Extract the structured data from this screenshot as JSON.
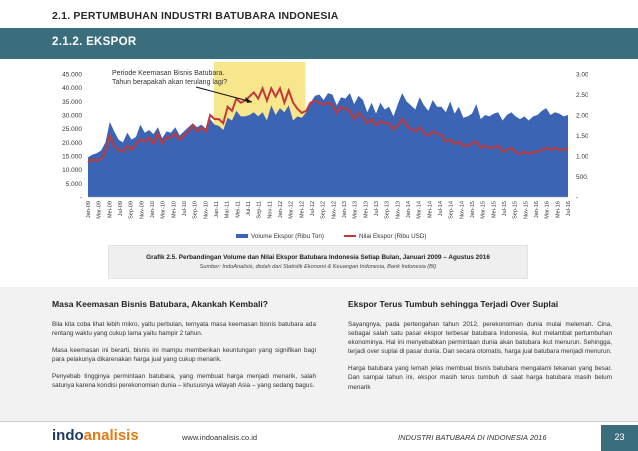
{
  "header": {
    "top_title": "2.1. PERTUMBUHAN INDUSTRI BATUBARA INDONESIA",
    "section_title": "2.1.2. EKSPOR"
  },
  "chart_data": {
    "type": "area",
    "annotation": "Periode Keemasan Bisnis Batubara.\nTahun berapakah akan terulang lagi?",
    "highlight_range": [
      "Jan-11",
      "Jun-12"
    ],
    "left_axis": {
      "ticks": [
        "-",
        "5.000",
        "10.000",
        "15.000",
        "20.000",
        "25.000",
        "30.000",
        "35.000",
        "40.000",
        "45.000"
      ],
      "ylim": [
        0,
        45000
      ]
    },
    "right_axis": {
      "ticks": [
        "-",
        "500.000",
        "1.000.000",
        "1.500.000",
        "2.000.000",
        "2.500.000",
        "3.000.000"
      ],
      "ylim": [
        0,
        3000000
      ]
    },
    "x_tick_labels": [
      "Jan-09",
      "Mar-09",
      "Mei-09",
      "Jul-09",
      "Sep-09",
      "Nov-09",
      "Jan-10",
      "Mar-10",
      "Mei-10",
      "Jul-10",
      "Sep-10",
      "Nov-10",
      "Jan-11",
      "Mar-11",
      "Mei-11",
      "Jul-11",
      "Sep-11",
      "Nov-11",
      "Jan-12",
      "Mar-12",
      "Mei-12",
      "Jul-12",
      "Sep-12",
      "Nov-12",
      "Jan-13",
      "Mar-13",
      "Mei-13",
      "Jul-13",
      "Sep-13",
      "Nov-13",
      "Jan-14",
      "Mar-14",
      "Mei-14",
      "Jul-14",
      "Sep-14",
      "Nov-14",
      "Jan-15",
      "Mar-15",
      "Mei-15",
      "Jul-15",
      "Sep-15",
      "Nov-15",
      "Jan-16",
      "Mar-16",
      "Mei-16",
      "Jul-16"
    ],
    "series": [
      {
        "name": "Volume Ekspor (Ribu Ton)",
        "axis": "left",
        "color": "#3b64b5",
        "values": [
          14500,
          15500,
          16000,
          17000,
          20000,
          27500,
          24000,
          21000,
          20000,
          23500,
          21000,
          22000,
          26500,
          23500,
          24500,
          23000,
          25500,
          21500,
          24000,
          23500,
          25500,
          22500,
          24000,
          25500,
          27000,
          25500,
          26500,
          25000,
          28500,
          26500,
          26000,
          24500,
          29000,
          28000,
          31500,
          29500,
          29500,
          30000,
          31000,
          29500,
          31000,
          28000,
          33500,
          30000,
          32500,
          31000,
          33500,
          28000,
          29500,
          29000,
          31000,
          34500,
          37000,
          37500,
          35500,
          38000,
          37500,
          33500,
          36500,
          36000,
          38000,
          34000,
          37000,
          35500,
          31000,
          34500,
          30500,
          34500,
          32000,
          33000,
          29500,
          34000,
          38000,
          35000,
          33500,
          32000,
          36500,
          33500,
          31500,
          35500,
          33000,
          33000,
          31000,
          35000,
          30500,
          33000,
          29000,
          29500,
          30500,
          34000,
          28500,
          30000,
          29500,
          30500,
          31000,
          28000,
          30000,
          31000,
          29500,
          28500,
          29500,
          28000,
          29500,
          30000,
          31500,
          32500,
          30000,
          31000,
          30500,
          29500,
          30000
        ]
      },
      {
        "name": "Nilai Ekspor (Ribu USD)",
        "axis": "right",
        "color": "#c0393b",
        "values": [
          850000,
          920000,
          880000,
          930000,
          1100000,
          1500000,
          1250000,
          1150000,
          1100000,
          1250000,
          1150000,
          1300000,
          1400000,
          1350000,
          1450000,
          1300000,
          1550000,
          1300000,
          1450000,
          1450000,
          1550000,
          1400000,
          1500000,
          1600000,
          1750000,
          1600000,
          1700000,
          1600000,
          2000000,
          1900000,
          1900000,
          1800000,
          2200000,
          2100000,
          2400000,
          2300000,
          2350000,
          2450000,
          2550000,
          2400000,
          2650000,
          2350000,
          2650000,
          2450000,
          2650000,
          2300000,
          2600000,
          2300000,
          2150000,
          2050000,
          2100000,
          2300000,
          2350000,
          2300000,
          2250000,
          2300000,
          2250000,
          2050000,
          2200000,
          2150000,
          2100000,
          1900000,
          2050000,
          1950000,
          1800000,
          1900000,
          1750000,
          1850000,
          1800000,
          1800000,
          1650000,
          1750000,
          1900000,
          1750000,
          1650000,
          1600000,
          1700000,
          1550000,
          1500000,
          1600000,
          1550000,
          1500000,
          1350000,
          1400000,
          1300000,
          1350000,
          1250000,
          1250000,
          1300000,
          1350000,
          1200000,
          1250000,
          1200000,
          1200000,
          1250000,
          1100000,
          1150000,
          1200000,
          1100000,
          1050000,
          1100000,
          1050000,
          1100000,
          1100000,
          1150000,
          1200000,
          1150000,
          1200000,
          1150000,
          1150000,
          1200000
        ]
      }
    ]
  },
  "caption": {
    "title": "Grafik 2.5. Perbandingan Volume dan Nilai Ekspor Batubara Indonesia Setiap Bulan, Januari 2009 – Agustus 2016",
    "source": "Sumber: IndoAnalisis, diolah dari Statistik Ekonomi & Keuangan Indonesia, Bank Indonesia (BI)"
  },
  "left_column": {
    "heading": "Masa Keemasan Bisnis Batubara, Akankah Kembali?",
    "p1": "Bila kita coba lihat lebih mikro, yaitu perbulan, ternyata masa keemasan bisnis batubara ada rentang waktu yang cukup lama yaitu hampir 2 tahun.",
    "p2": "Masa keemasan ini berarti, bisnis ini mampu memberikan keuntungan yang signifikan bagi para pelakunya dikarenakan harga jual yang cukup menarik.",
    "p3": "Penyebab tingginya permintaan batubara, yang membuat harga menjadi menarik, salah satunya karena kondisi perekonomian dunia – khususnya wilayah Asia – yang sedang bagus."
  },
  "right_column": {
    "heading": "Ekspor Terus Tumbuh sehingga Terjadi Over Suplai",
    "p1": "Sayangnya, pada pertengahan tahun 2012, perekonomian dunia mulai melemah. Cina, sebagai salah satu pasar ekspor terbesar batubara Indonesia, ikut melambat pertumbuhan ekonominya. Hal ini menyebabkan permintaan dunia akan batubara ikut menurun. Sehingga, terjadi over suplai di pasar dunia. Dan secara otomatis, harga jual batubara menjadi menurun.",
    "p2": "Harga batubara yang lemah jelas membuat bisnis batubara mengalami tekanan yang besar. Dan sampai tahun ini, ekspor masih terus tumbuh di saat harga batubara masih belum menarik"
  },
  "footer": {
    "logo_a": "indo",
    "logo_b": "analisis",
    "url": "www.indoanalisis.co.id",
    "publication": "INDUSTRI BATUBARA DI INDONESIA 2016",
    "page": "23"
  },
  "colors": {
    "accent": "#3a6e7d",
    "highlight": "#f8e68c",
    "volume": "#3b64b5",
    "value": "#c0393b"
  }
}
